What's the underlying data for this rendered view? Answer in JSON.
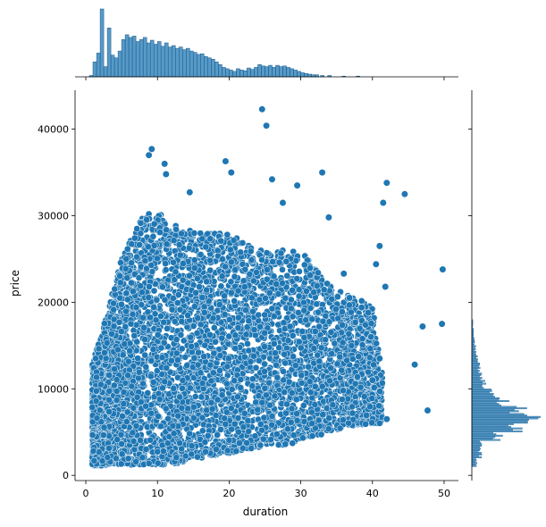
{
  "chart_data": {
    "type": "scatter",
    "subtype": "jointplot",
    "title": "",
    "xlabel": "duration",
    "ylabel": "price",
    "xlim": [
      -1.5,
      52
    ],
    "ylim": [
      -600,
      44500
    ],
    "xticks": [
      0,
      10,
      20,
      30,
      40,
      50
    ],
    "yticks": [
      0,
      10000,
      20000,
      30000,
      40000
    ],
    "xtick_labels": [
      "0",
      "10",
      "20",
      "30",
      "40",
      "50"
    ],
    "ytick_labels": [
      "0",
      "10000",
      "20000",
      "30000",
      "40000"
    ],
    "grid": false,
    "legend": "none",
    "point_color": "#1f77b4",
    "bulk_envelope": {
      "description": "dense cloud of points; upper boundary of bulk by duration",
      "x": [
        1,
        2,
        3,
        4,
        5,
        6,
        8,
        10,
        12,
        14,
        16,
        18,
        20,
        22,
        24,
        26,
        28,
        30,
        32,
        34,
        36,
        38,
        40,
        42
      ],
      "upper": [
        13000,
        16000,
        19000,
        22000,
        25000,
        27000,
        30000,
        30500,
        29000,
        28500,
        28000,
        28000,
        28000,
        27000,
        26000,
        26000,
        26000,
        26000,
        24000,
        22000,
        21000,
        20500,
        19500,
        8000
      ],
      "lower": [
        1100,
        1100,
        1200,
        1200,
        1200,
        1200,
        1200,
        1200,
        1300,
        1500,
        2000,
        2300,
        2500,
        3000,
        3200,
        3500,
        3500,
        4000,
        4500,
        5000,
        5500,
        5800,
        6000,
        6000
      ]
    },
    "outliers": [
      {
        "x": 24.6,
        "y": 42300
      },
      {
        "x": 25.2,
        "y": 40400
      },
      {
        "x": 9.2,
        "y": 37700
      },
      {
        "x": 8.8,
        "y": 37000
      },
      {
        "x": 19.5,
        "y": 36300
      },
      {
        "x": 11.0,
        "y": 36000
      },
      {
        "x": 20.3,
        "y": 35000
      },
      {
        "x": 33.0,
        "y": 35000
      },
      {
        "x": 11.2,
        "y": 34800
      },
      {
        "x": 26.0,
        "y": 34200
      },
      {
        "x": 42.0,
        "y": 33800
      },
      {
        "x": 29.5,
        "y": 33500
      },
      {
        "x": 44.5,
        "y": 32500
      },
      {
        "x": 14.5,
        "y": 32700
      },
      {
        "x": 27.5,
        "y": 31500
      },
      {
        "x": 41.5,
        "y": 31500
      },
      {
        "x": 33.9,
        "y": 29800
      },
      {
        "x": 41.0,
        "y": 26500
      },
      {
        "x": 40.5,
        "y": 24400
      },
      {
        "x": 49.8,
        "y": 23800
      },
      {
        "x": 36.0,
        "y": 23300
      },
      {
        "x": 41.8,
        "y": 21800
      },
      {
        "x": 47.0,
        "y": 17200
      },
      {
        "x": 49.7,
        "y": 17500
      },
      {
        "x": 45.9,
        "y": 12800
      },
      {
        "x": 47.7,
        "y": 7500
      },
      {
        "x": 42.0,
        "y": 6500
      },
      {
        "x": 40.0,
        "y": 11000
      },
      {
        "x": 39.8,
        "y": 16000
      },
      {
        "x": 41.0,
        "y": 13500
      },
      {
        "x": 38.5,
        "y": 19400
      },
      {
        "x": 36.8,
        "y": 20500
      }
    ],
    "marginal_x_histogram": {
      "description": "distribution of duration (top marginal)",
      "bin_centers": [
        0.75,
        1.25,
        1.75,
        2.25,
        2.75,
        3.25,
        3.75,
        4.25,
        4.75,
        5.25,
        5.75,
        6.25,
        6.75,
        7.25,
        7.75,
        8.25,
        8.75,
        9.25,
        9.75,
        10.25,
        10.75,
        11.25,
        11.75,
        12.25,
        12.75,
        13.25,
        13.75,
        14.25,
        14.75,
        15.25,
        15.75,
        16.25,
        16.75,
        17.25,
        17.75,
        18.25,
        18.75,
        19.25,
        19.75,
        20.25,
        20.75,
        21.25,
        21.75,
        22.25,
        22.75,
        23.25,
        23.75,
        24.25,
        24.75,
        25.25,
        25.75,
        26.25,
        26.75,
        27.25,
        27.75,
        28.25,
        28.75,
        29.25,
        29.75,
        30.25,
        30.75,
        31.25,
        31.75,
        32.25,
        33.0,
        34.0,
        36.0,
        38.0
      ],
      "counts": [
        2,
        22,
        35,
        100,
        15,
        72,
        32,
        28,
        38,
        55,
        62,
        58,
        60,
        52,
        55,
        58,
        50,
        54,
        48,
        52,
        45,
        50,
        44,
        46,
        42,
        44,
        40,
        42,
        38,
        36,
        33,
        34,
        30,
        28,
        26,
        22,
        18,
        14,
        12,
        10,
        8,
        12,
        10,
        9,
        13,
        11,
        14,
        18,
        16,
        15,
        17,
        14,
        17,
        15,
        16,
        14,
        12,
        10,
        8,
        6,
        5,
        4,
        3,
        3,
        2,
        2,
        1,
        1
      ]
    },
    "marginal_y_histogram": {
      "description": "distribution of price (right marginal)",
      "bin_centers": [
        1500,
        2500,
        3500,
        4500,
        5500,
        6500,
        7500,
        8500,
        9500,
        10500,
        11500,
        12500,
        13500,
        14500,
        15500,
        16500,
        17500
      ],
      "counts": [
        6,
        10,
        12,
        30,
        48,
        70,
        55,
        38,
        25,
        14,
        10,
        8,
        6,
        4,
        3,
        2,
        1
      ]
    }
  }
}
